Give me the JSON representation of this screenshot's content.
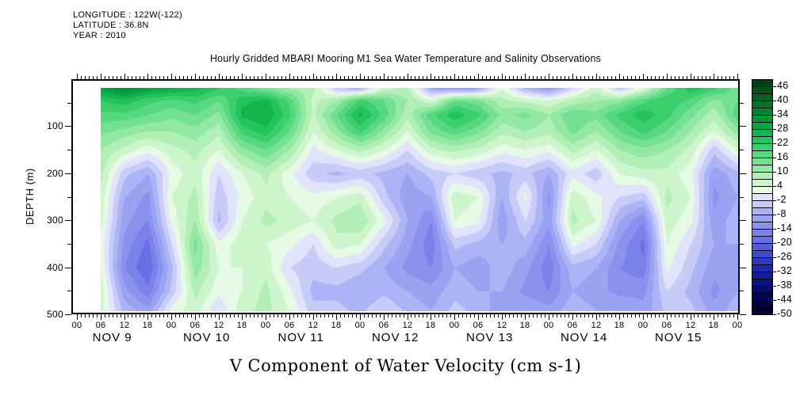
{
  "header": {
    "longitude": "LONGITUDE : 122W(-122)",
    "latitude": "LATITUDE : 36.8N",
    "year": "YEAR : 2010"
  },
  "chart_data": {
    "type": "heatmap",
    "title": "Hourly Gridded MBARI Mooring M1 Sea Water Temperature and Salinity Observations",
    "xlabel": "V Component of Water Velocity (cm s-1)",
    "ylabel": "DEPTH (m)",
    "ylim": [
      0,
      500
    ],
    "y_major_ticks": [
      100,
      200,
      300,
      400,
      500
    ],
    "y_minor_ticks": [
      50,
      150,
      250,
      350,
      450
    ],
    "x_total_hours": 168,
    "x_major_step_hours": 6,
    "x_minor_step_hours": 1,
    "hour_label_cycle": [
      "00",
      "06",
      "12",
      "18"
    ],
    "day_labels": [
      "NOV 9",
      "NOV 10",
      "NOV 11",
      "NOV 12",
      "NOV 13",
      "NOV 14",
      "NOV 15"
    ],
    "colorbar": {
      "vmin": -50,
      "vmax": 49,
      "step": 3,
      "tick_values": [
        46,
        40,
        34,
        28,
        22,
        16,
        10,
        4,
        -2,
        -8,
        -14,
        -20,
        -26,
        -32,
        -38,
        -44,
        -50
      ],
      "colors_low_to_high": [
        "#00022e",
        "#010340",
        "#020656",
        "#040a6e",
        "#0a1284",
        "#141c9a",
        "#2029ae",
        "#2f38c0",
        "#3f49d0",
        "#525cdc",
        "#666fe4",
        "#7a82ea",
        "#8a92ee",
        "#9aa2f2",
        "#adb4f6",
        "#c6cbf8",
        "#e0e3fb",
        "#e6f9e4",
        "#cdf5cb",
        "#b2efb6",
        "#93e8a4",
        "#74e092",
        "#55d87e",
        "#3ace6c",
        "#24c25c",
        "#12b44e",
        "#06a542",
        "#009638",
        "#008530",
        "#007428",
        "#006321",
        "#00521a",
        "#004213"
      ]
    },
    "grid": {
      "comment": "columns = one profile per 6 h starting NOV 9 06:00; values cm/s at listed depths",
      "time_start_hour": 6,
      "time_step_hours": 6,
      "depths": [
        20,
        45,
        75,
        110,
        150,
        200,
        250,
        300,
        350,
        400,
        450,
        490
      ],
      "columns": [
        [
          30,
          22,
          18,
          14,
          10,
          8,
          6,
          5,
          3,
          4,
          6,
          5
        ],
        [
          34,
          24,
          18,
          12,
          6,
          -4,
          -8,
          -10,
          -12,
          -14,
          -10,
          -6
        ],
        [
          30,
          20,
          16,
          10,
          2,
          -8,
          -12,
          -14,
          -18,
          -20,
          -16,
          -10
        ],
        [
          28,
          18,
          14,
          10,
          6,
          2,
          4,
          2,
          -2,
          -6,
          -4,
          2
        ],
        [
          26,
          20,
          16,
          12,
          8,
          6,
          8,
          10,
          14,
          12,
          8,
          6
        ],
        [
          22,
          16,
          12,
          8,
          4,
          -2,
          -4,
          -6,
          2,
          4,
          2,
          -2
        ],
        [
          18,
          24,
          26,
          20,
          12,
          4,
          2,
          4,
          6,
          4,
          4,
          6
        ],
        [
          14,
          26,
          28,
          24,
          16,
          8,
          6,
          8,
          4,
          6,
          8,
          8
        ],
        [
          10,
          18,
          20,
          16,
          10,
          2,
          4,
          6,
          2,
          -2,
          2,
          4
        ],
        [
          8,
          6,
          6,
          4,
          0,
          -4,
          2,
          4,
          -2,
          -4,
          -6,
          -4
        ],
        [
          -4,
          10,
          16,
          12,
          4,
          -6,
          4,
          8,
          6,
          -2,
          -6,
          -4
        ],
        [
          -6,
          20,
          26,
          20,
          8,
          -4,
          6,
          10,
          4,
          -4,
          -8,
          -6
        ],
        [
          6,
          16,
          18,
          12,
          4,
          -6,
          -4,
          2,
          -4,
          -8,
          -6,
          -2
        ],
        [
          8,
          10,
          8,
          4,
          -2,
          -8,
          -10,
          -8,
          -10,
          -12,
          -8,
          -6
        ],
        [
          -8,
          4,
          18,
          14,
          6,
          -4,
          -8,
          -14,
          -16,
          -14,
          -10,
          -8
        ],
        [
          -10,
          16,
          24,
          18,
          8,
          -2,
          6,
          4,
          -4,
          -8,
          -6,
          -4
        ],
        [
          -8,
          14,
          20,
          14,
          6,
          -4,
          4,
          2,
          -6,
          -10,
          -8,
          -6
        ],
        [
          4,
          8,
          12,
          8,
          2,
          -6,
          -8,
          -10,
          -8,
          -6,
          -8,
          -10
        ],
        [
          -6,
          6,
          14,
          10,
          4,
          -4,
          2,
          -2,
          -6,
          -10,
          -12,
          -8
        ],
        [
          -10,
          4,
          10,
          8,
          2,
          -8,
          -12,
          -10,
          -14,
          -16,
          -14,
          -10
        ],
        [
          -2,
          8,
          16,
          14,
          8,
          0,
          6,
          8,
          2,
          -6,
          -8,
          -6
        ],
        [
          6,
          10,
          14,
          10,
          4,
          -4,
          2,
          4,
          -2,
          -8,
          -10,
          -8
        ],
        [
          -4,
          12,
          20,
          16,
          10,
          4,
          -2,
          -8,
          -12,
          -14,
          -12,
          -8
        ],
        [
          4,
          18,
          24,
          20,
          12,
          6,
          -4,
          -14,
          -18,
          -16,
          -12,
          -10
        ],
        [
          16,
          22,
          20,
          16,
          10,
          6,
          8,
          6,
          4,
          2,
          -2,
          -4
        ],
        [
          24,
          18,
          14,
          10,
          6,
          2,
          4,
          2,
          -2,
          -4,
          -6,
          -4
        ],
        [
          20,
          12,
          8,
          4,
          -4,
          -10,
          -12,
          -10,
          -8,
          -10,
          -12,
          -10
        ],
        [
          14,
          16,
          18,
          12,
          4,
          -6,
          -8,
          -6,
          -8,
          -10,
          -8,
          -6
        ]
      ]
    }
  }
}
